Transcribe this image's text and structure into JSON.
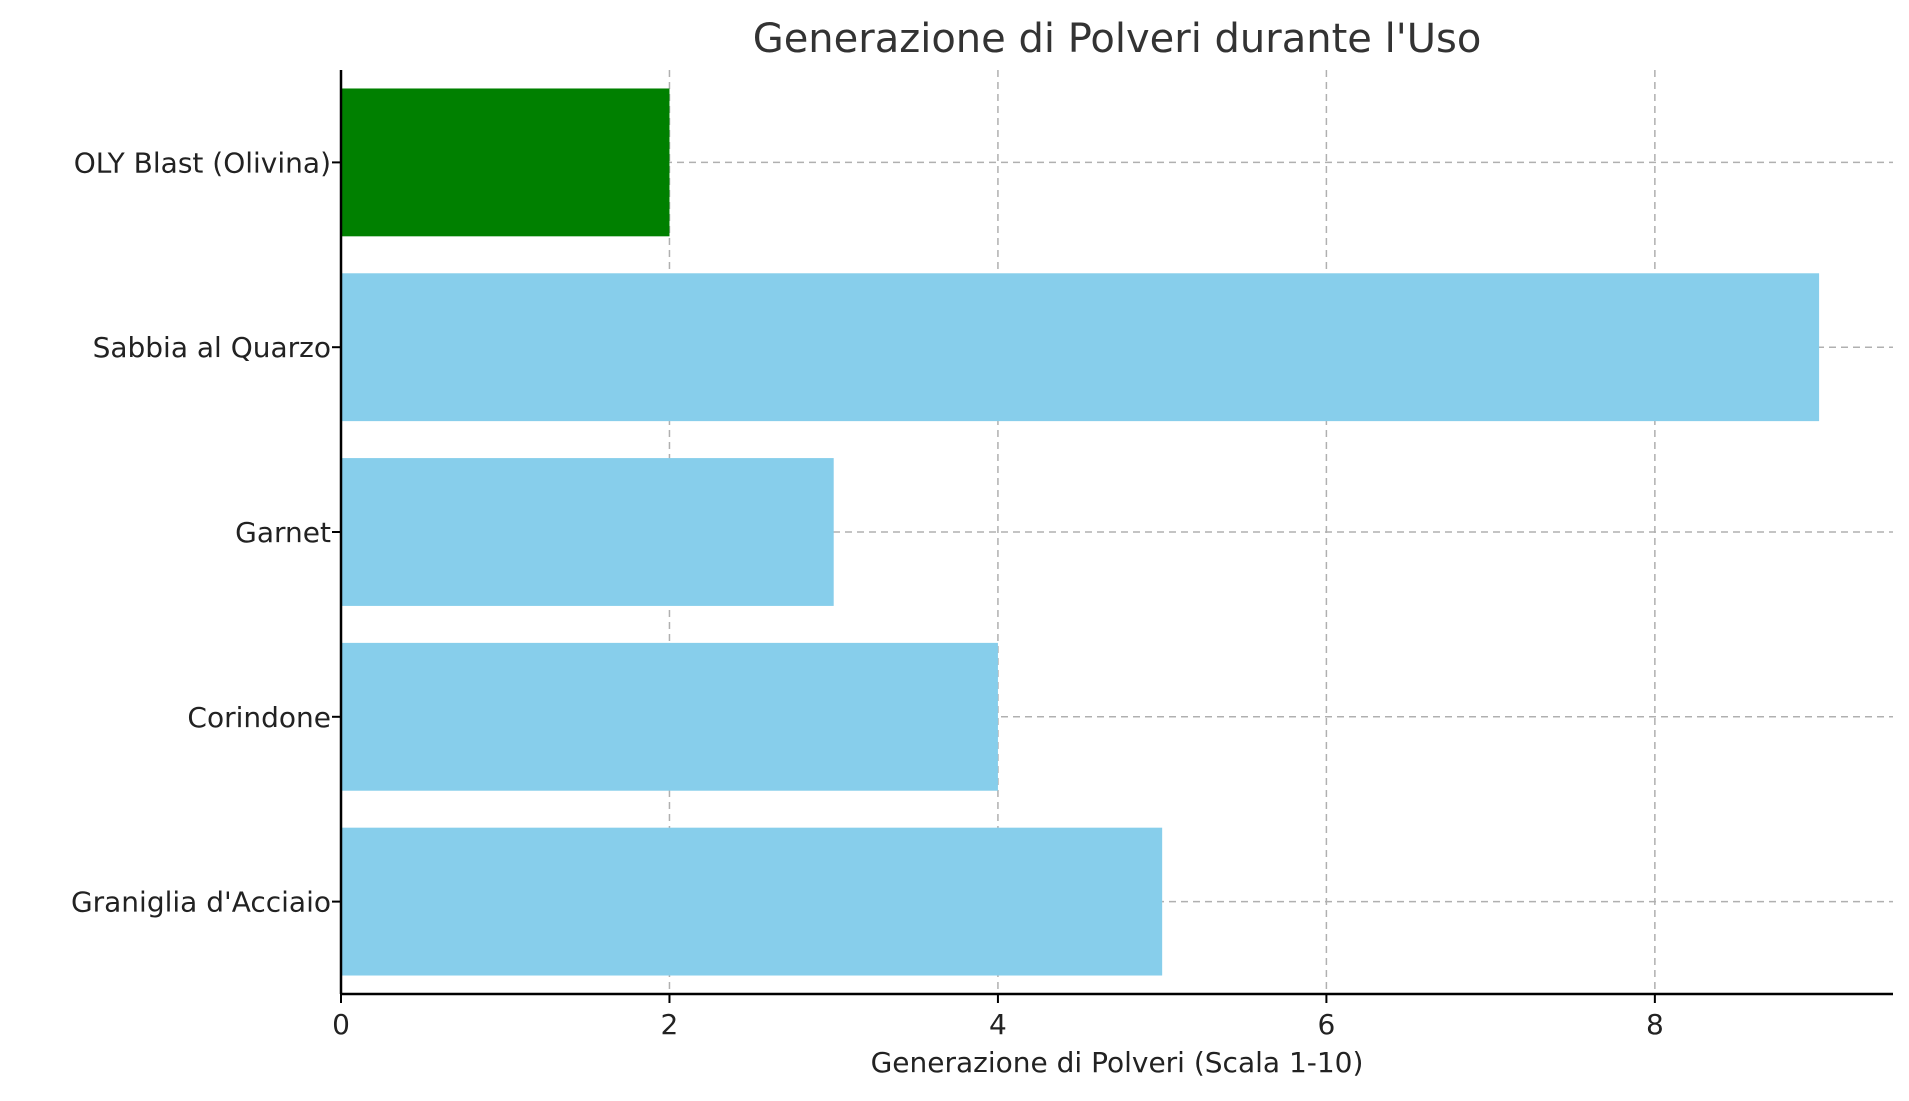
{
  "chart_data": {
    "type": "bar",
    "orientation": "horizontal",
    "title": "Generazione di Polveri durante l'Uso",
    "xlabel": "Generazione di Polveri (Scala 1-10)",
    "ylabel": "",
    "categories": [
      "Graniglia d'Acciaio",
      "Corindone",
      "Garnet",
      "Sabbia al Quarzo",
      "OLY Blast (Olivina)"
    ],
    "values": [
      5,
      4,
      3,
      9,
      2
    ],
    "colors": [
      "#87ceeb",
      "#87ceeb",
      "#87ceeb",
      "#87ceeb",
      "#008000"
    ],
    "xlim": [
      0,
      9.45
    ],
    "xticks": [
      0,
      2,
      4,
      6,
      8
    ],
    "grid": true,
    "legend": "none"
  }
}
